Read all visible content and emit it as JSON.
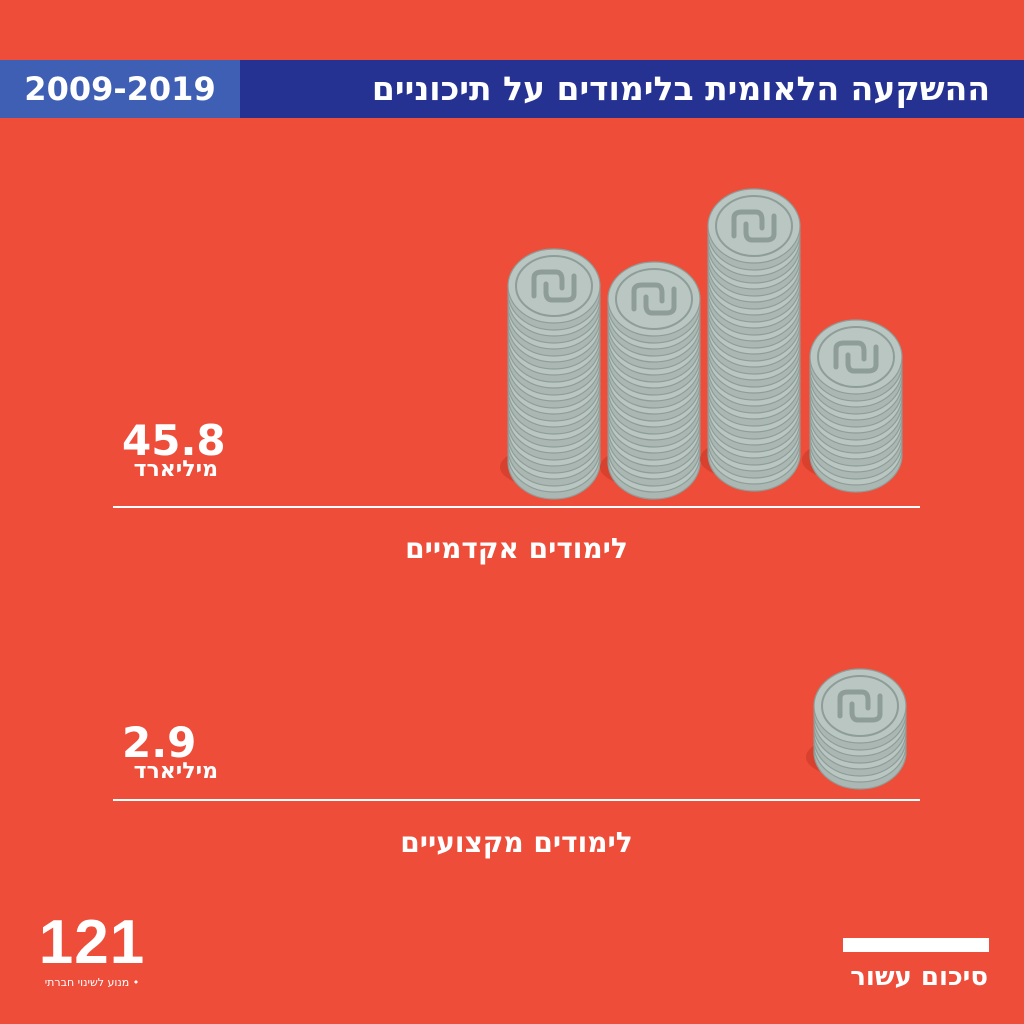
{
  "header": {
    "title": "ההשקעה הלאומית בלימודים על תיכוניים",
    "years": "2009-2019"
  },
  "chart_data": {
    "type": "bar",
    "title": "ההשקעה הלאומית בלימודים על תיכוניים",
    "categories": [
      "לימודים אקדמיים",
      "לימודים מקצועיים"
    ],
    "values": [
      45.8,
      2.9
    ],
    "unit": "מיליארד",
    "value_labels": [
      "45.8",
      "2.9"
    ],
    "icon": "shekel-coin-icon",
    "colors": {
      "background": "#ee4d3a",
      "header": "#253292",
      "years_box": "#3f5fb5",
      "coin": "#b9c6c1"
    }
  },
  "logo": {
    "number": "121",
    "tagline": "• מנוע לשינוי חברתי"
  },
  "footer": {
    "label": "סיכום עשור"
  }
}
